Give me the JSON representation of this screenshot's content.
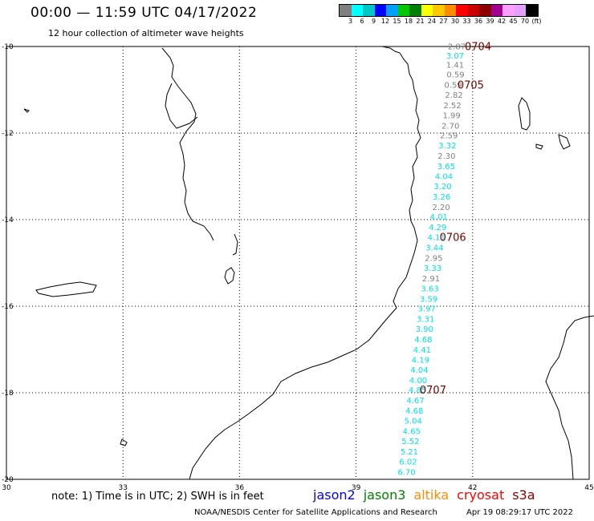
{
  "header": {
    "title": "00:00 — 11:59 UTC 04/17/2022",
    "subtitle": "12 hour collection of altimeter wave heights"
  },
  "legend": {
    "colors": [
      "#808080",
      "#00ffff",
      "#00c8c8",
      "#0000ff",
      "#00a0ff",
      "#00c800",
      "#008000",
      "#ffff00",
      "#ffc800",
      "#ff8c00",
      "#ff0000",
      "#c80000",
      "#8b0000",
      "#a0008c",
      "#ffa0ff",
      "#e6a0ff",
      "#000000"
    ],
    "labels": [
      "3",
      "6",
      "9",
      "12",
      "15",
      "18",
      "21",
      "24",
      "27",
      "30",
      "33",
      "36",
      "39",
      "42",
      "45",
      "70",
      "(ft)"
    ]
  },
  "map": {
    "lon_ticks": [
      "30",
      "33",
      "36",
      "39",
      "42",
      "45"
    ],
    "lat_ticks": [
      "-10",
      "-12",
      "-14",
      "-16",
      "-18",
      "-20"
    ],
    "wave_colors": {
      "gray": "#808080",
      "cyan": "#00e0e8"
    },
    "waves": [
      {
        "lat": -9.99,
        "lon": 41.59,
        "v": "2.87",
        "c": "gray"
      },
      {
        "lat": -10.2,
        "lon": 41.55,
        "v": "3.07",
        "c": "cyan"
      },
      {
        "lat": -10.42,
        "lon": 41.55,
        "v": "1.41",
        "c": "gray"
      },
      {
        "lat": -10.64,
        "lon": 41.56,
        "v": "0.59",
        "c": "gray"
      },
      {
        "lat": -10.88,
        "lon": 41.5,
        "v": "0.59",
        "c": "gray"
      },
      {
        "lat": -11.11,
        "lon": 41.52,
        "v": "2.82",
        "c": "gray"
      },
      {
        "lat": -11.35,
        "lon": 41.48,
        "v": "2.52",
        "c": "gray"
      },
      {
        "lat": -11.58,
        "lon": 41.46,
        "v": "1.99",
        "c": "gray"
      },
      {
        "lat": -11.82,
        "lon": 41.43,
        "v": "2.70",
        "c": "gray"
      },
      {
        "lat": -12.05,
        "lon": 41.39,
        "v": "2.59",
        "c": "gray"
      },
      {
        "lat": -12.28,
        "lon": 41.35,
        "v": "3.32",
        "c": "cyan"
      },
      {
        "lat": -12.52,
        "lon": 41.33,
        "v": "2.30",
        "c": "gray"
      },
      {
        "lat": -12.76,
        "lon": 41.32,
        "v": "3.65",
        "c": "cyan"
      },
      {
        "lat": -12.99,
        "lon": 41.26,
        "v": "4.04",
        "c": "cyan"
      },
      {
        "lat": -13.22,
        "lon": 41.23,
        "v": "3.20",
        "c": "cyan"
      },
      {
        "lat": -13.46,
        "lon": 41.2,
        "v": "3.26",
        "c": "cyan"
      },
      {
        "lat": -13.7,
        "lon": 41.19,
        "v": "2.20",
        "c": "gray"
      },
      {
        "lat": -13.93,
        "lon": 41.13,
        "v": "4.01",
        "c": "cyan"
      },
      {
        "lat": -14.17,
        "lon": 41.1,
        "v": "4.29",
        "c": "cyan"
      },
      {
        "lat": -14.4,
        "lon": 41.07,
        "v": "4.11",
        "c": "cyan"
      },
      {
        "lat": -14.64,
        "lon": 41.02,
        "v": "3.44",
        "c": "cyan"
      },
      {
        "lat": -14.88,
        "lon": 41.0,
        "v": "2.95",
        "c": "gray"
      },
      {
        "lat": -15.11,
        "lon": 40.97,
        "v": "3.33",
        "c": "cyan"
      },
      {
        "lat": -15.35,
        "lon": 40.93,
        "v": "2.91",
        "c": "gray"
      },
      {
        "lat": -15.58,
        "lon": 40.9,
        "v": "3.63",
        "c": "cyan"
      },
      {
        "lat": -15.82,
        "lon": 40.87,
        "v": "3.59",
        "c": "cyan"
      },
      {
        "lat": -16.05,
        "lon": 40.82,
        "v": "3.97",
        "c": "cyan"
      },
      {
        "lat": -16.29,
        "lon": 40.79,
        "v": "3.31",
        "c": "cyan"
      },
      {
        "lat": -16.52,
        "lon": 40.76,
        "v": "3.90",
        "c": "cyan"
      },
      {
        "lat": -16.76,
        "lon": 40.73,
        "v": "4.68",
        "c": "cyan"
      },
      {
        "lat": -17.0,
        "lon": 40.7,
        "v": "4.41",
        "c": "cyan"
      },
      {
        "lat": -17.23,
        "lon": 40.66,
        "v": "4.19",
        "c": "cyan"
      },
      {
        "lat": -17.46,
        "lon": 40.63,
        "v": "4.04",
        "c": "cyan"
      },
      {
        "lat": -17.7,
        "lon": 40.6,
        "v": "4.00",
        "c": "cyan"
      },
      {
        "lat": -17.93,
        "lon": 40.58,
        "v": "4.85",
        "c": "cyan"
      },
      {
        "lat": -18.17,
        "lon": 40.53,
        "v": "4.67",
        "c": "cyan"
      },
      {
        "lat": -18.41,
        "lon": 40.5,
        "v": "4.68",
        "c": "cyan"
      },
      {
        "lat": -18.64,
        "lon": 40.47,
        "v": "5.04",
        "c": "cyan"
      },
      {
        "lat": -18.88,
        "lon": 40.43,
        "v": "4.65",
        "c": "cyan"
      },
      {
        "lat": -19.11,
        "lon": 40.4,
        "v": "5.52",
        "c": "cyan"
      },
      {
        "lat": -19.35,
        "lon": 40.37,
        "v": "5.21",
        "c": "cyan"
      },
      {
        "lat": -19.58,
        "lon": 40.34,
        "v": "6.02",
        "c": "cyan"
      },
      {
        "lat": -19.82,
        "lon": 40.3,
        "v": "6.70",
        "c": "cyan"
      }
    ],
    "pass_times": [
      {
        "lat": -9.99,
        "lon": 42.14,
        "t": "0704"
      },
      {
        "lat": -10.88,
        "lon": 41.95,
        "t": "0705"
      },
      {
        "lat": -14.4,
        "lon": 41.49,
        "t": "0706"
      },
      {
        "lat": -17.93,
        "lon": 40.98,
        "t": "0707"
      }
    ]
  },
  "footer": {
    "note": "note: 1) Time is in UTC; 2) SWH is in feet",
    "satellites": [
      {
        "name": "jason2",
        "color": "#0000ff"
      },
      {
        "name": "jason3",
        "color": "#008000"
      },
      {
        "name": "altika",
        "color": "#ff8c00"
      },
      {
        "name": "cryosat",
        "color": "#ff0000"
      },
      {
        "name": "s3a",
        "color": "#8b0000"
      }
    ],
    "credit": "NOAA/NESDIS Center for Satellite Applications and Research",
    "timestamp": "Apr 19 08:29:17 UTC 2022"
  }
}
